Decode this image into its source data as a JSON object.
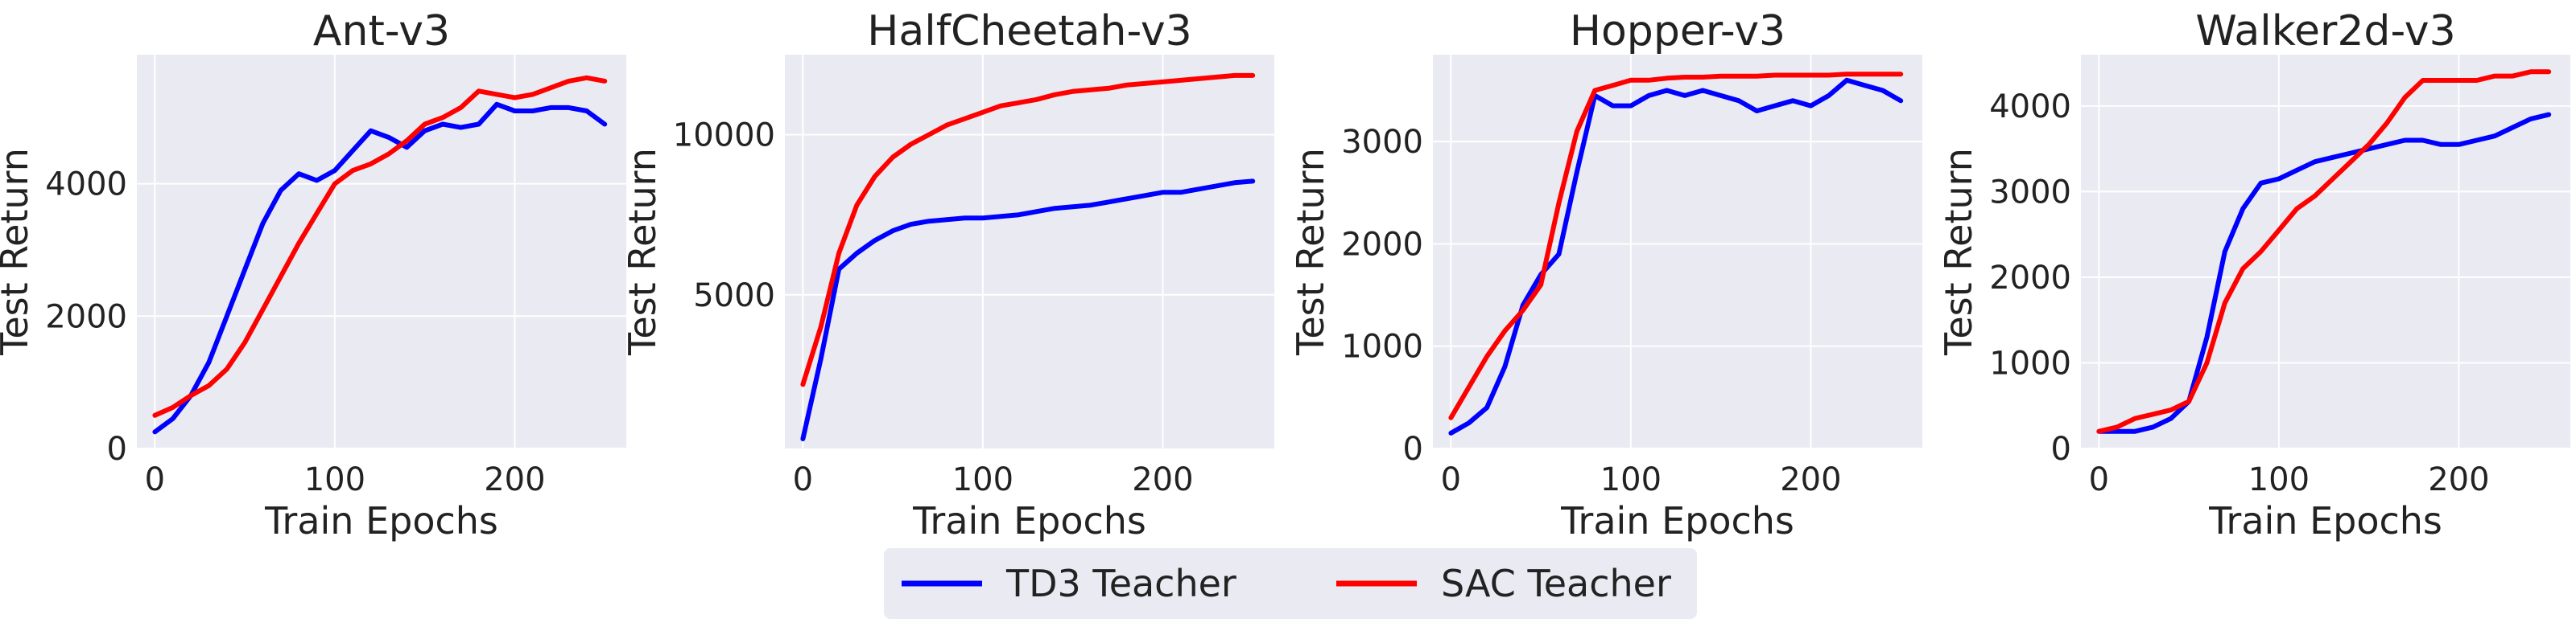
{
  "legend": {
    "placement": "bottom-center",
    "entries": [
      {
        "label": "TD3 Teacher",
        "color": "#0000ff"
      },
      {
        "label": "SAC Teacher",
        "color": "#ff0000"
      }
    ]
  },
  "chart_data": [
    {
      "type": "line",
      "title": "Ant-v3",
      "xlabel": "Train Epochs",
      "ylabel": "Test Return",
      "xlim": [
        -10,
        262
      ],
      "ylim": [
        0,
        5950
      ],
      "xticks": [
        0,
        100,
        200
      ],
      "yticks": [
        0,
        2000,
        4000
      ],
      "ytick_labels": [
        "0",
        "2000",
        "4000"
      ],
      "grid": true,
      "series": [
        {
          "name": "TD3 Teacher",
          "color": "#0000ff",
          "x": [
            0,
            10,
            20,
            30,
            40,
            50,
            60,
            70,
            80,
            90,
            100,
            110,
            120,
            130,
            140,
            150,
            160,
            170,
            180,
            190,
            200,
            210,
            220,
            230,
            240,
            250
          ],
          "y": [
            250,
            450,
            800,
            1300,
            2000,
            2700,
            3400,
            3900,
            4150,
            4050,
            4200,
            4500,
            4800,
            4700,
            4550,
            4800,
            4900,
            4850,
            4900,
            5200,
            5100,
            5100,
            5150,
            5150,
            5100,
            4900
          ]
        },
        {
          "name": "SAC Teacher",
          "color": "#ff0000",
          "x": [
            0,
            10,
            20,
            30,
            40,
            50,
            60,
            70,
            80,
            90,
            100,
            110,
            120,
            130,
            140,
            150,
            160,
            170,
            180,
            190,
            200,
            210,
            220,
            230,
            240,
            250
          ],
          "y": [
            500,
            620,
            800,
            950,
            1200,
            1600,
            2100,
            2600,
            3100,
            3550,
            4000,
            4200,
            4300,
            4450,
            4650,
            4900,
            5000,
            5150,
            5400,
            5350,
            5300,
            5350,
            5450,
            5550,
            5600,
            5550
          ]
        }
      ]
    },
    {
      "type": "line",
      "title": "HalfCheetah-v3",
      "xlabel": "Train Epochs",
      "ylabel": "Test Return",
      "xlim": [
        -10,
        262
      ],
      "ylim": [
        200,
        12500
      ],
      "xticks": [
        0,
        100,
        200
      ],
      "yticks": [
        5000,
        10000
      ],
      "ytick_labels": [
        "5000",
        "10000"
      ],
      "grid": true,
      "series": [
        {
          "name": "TD3 Teacher",
          "color": "#0000ff",
          "x": [
            0,
            10,
            20,
            30,
            40,
            50,
            60,
            70,
            80,
            90,
            100,
            110,
            120,
            130,
            140,
            150,
            160,
            170,
            180,
            190,
            200,
            210,
            220,
            230,
            240,
            250
          ],
          "y": [
            500,
            3000,
            5800,
            6300,
            6700,
            7000,
            7200,
            7300,
            7350,
            7400,
            7400,
            7450,
            7500,
            7600,
            7700,
            7750,
            7800,
            7900,
            8000,
            8100,
            8200,
            8200,
            8300,
            8400,
            8500,
            8550
          ]
        },
        {
          "name": "SAC Teacher",
          "color": "#ff0000",
          "x": [
            0,
            10,
            20,
            30,
            40,
            50,
            60,
            70,
            80,
            90,
            100,
            110,
            120,
            130,
            140,
            150,
            160,
            170,
            180,
            190,
            200,
            210,
            220,
            230,
            240,
            250
          ],
          "y": [
            2200,
            4000,
            6300,
            7800,
            8700,
            9300,
            9700,
            10000,
            10300,
            10500,
            10700,
            10900,
            11000,
            11100,
            11250,
            11350,
            11400,
            11450,
            11550,
            11600,
            11650,
            11700,
            11750,
            11800,
            11850,
            11850
          ]
        }
      ]
    },
    {
      "type": "line",
      "title": "Hopper-v3",
      "xlabel": "Train Epochs",
      "ylabel": "Test Return",
      "xlim": [
        -10,
        262
      ],
      "ylim": [
        0,
        3850
      ],
      "xticks": [
        0,
        100,
        200
      ],
      "yticks": [
        0,
        1000,
        2000,
        3000
      ],
      "ytick_labels": [
        "0",
        "1000",
        "2000",
        "3000"
      ],
      "grid": true,
      "series": [
        {
          "name": "TD3 Teacher",
          "color": "#0000ff",
          "x": [
            0,
            10,
            20,
            30,
            40,
            50,
            60,
            70,
            80,
            90,
            100,
            110,
            120,
            130,
            140,
            150,
            160,
            170,
            180,
            190,
            200,
            210,
            220,
            230,
            240,
            250
          ],
          "y": [
            150,
            250,
            400,
            800,
            1400,
            1700,
            1900,
            2700,
            3450,
            3350,
            3350,
            3450,
            3500,
            3450,
            3500,
            3450,
            3400,
            3300,
            3350,
            3400,
            3350,
            3450,
            3600,
            3550,
            3500,
            3400
          ]
        },
        {
          "name": "SAC Teacher",
          "color": "#ff0000",
          "x": [
            0,
            10,
            20,
            30,
            40,
            50,
            60,
            70,
            80,
            90,
            100,
            110,
            120,
            130,
            140,
            150,
            160,
            170,
            180,
            190,
            200,
            210,
            220,
            230,
            240,
            250
          ],
          "y": [
            300,
            600,
            900,
            1150,
            1350,
            1600,
            2400,
            3100,
            3500,
            3550,
            3600,
            3600,
            3620,
            3630,
            3630,
            3640,
            3640,
            3640,
            3650,
            3650,
            3650,
            3650,
            3660,
            3660,
            3660,
            3660
          ]
        }
      ]
    },
    {
      "type": "line",
      "title": "Walker2d-v3",
      "xlabel": "Train Epochs",
      "ylabel": "Test Return",
      "xlim": [
        -10,
        262
      ],
      "ylim": [
        0,
        4600
      ],
      "xticks": [
        0,
        100,
        200
      ],
      "yticks": [
        0,
        1000,
        2000,
        3000,
        4000
      ],
      "ytick_labels": [
        "0",
        "1000",
        "2000",
        "3000",
        "4000"
      ],
      "grid": true,
      "series": [
        {
          "name": "TD3 Teacher",
          "color": "#0000ff",
          "x": [
            0,
            10,
            20,
            30,
            40,
            50,
            60,
            70,
            80,
            90,
            100,
            110,
            120,
            130,
            140,
            150,
            160,
            170,
            180,
            190,
            200,
            210,
            220,
            230,
            240,
            250
          ],
          "y": [
            200,
            200,
            200,
            250,
            350,
            550,
            1300,
            2300,
            2800,
            3100,
            3150,
            3250,
            3350,
            3400,
            3450,
            3500,
            3550,
            3600,
            3600,
            3550,
            3550,
            3600,
            3650,
            3750,
            3850,
            3900
          ]
        },
        {
          "name": "SAC Teacher",
          "color": "#ff0000",
          "x": [
            0,
            10,
            20,
            30,
            40,
            50,
            60,
            70,
            80,
            90,
            100,
            110,
            120,
            130,
            140,
            150,
            160,
            170,
            180,
            190,
            200,
            210,
            220,
            230,
            240,
            250
          ],
          "y": [
            200,
            250,
            350,
            400,
            450,
            550,
            1000,
            1700,
            2100,
            2300,
            2550,
            2800,
            2950,
            3150,
            3350,
            3550,
            3800,
            4100,
            4300,
            4300,
            4300,
            4300,
            4350,
            4350,
            4400,
            4400
          ]
        }
      ]
    }
  ]
}
